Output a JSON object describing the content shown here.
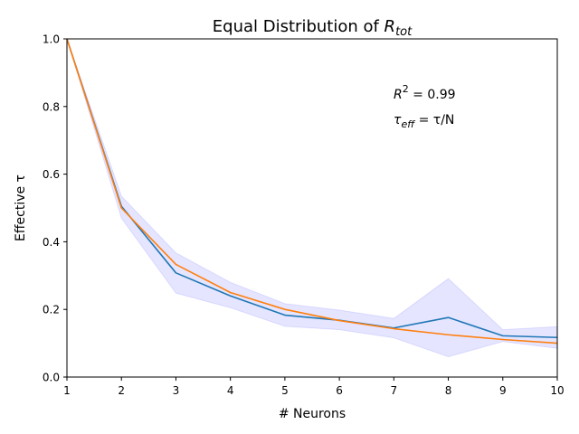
{
  "chart_data": {
    "type": "line",
    "title": {
      "main": "Equal Distribution of ",
      "var": "R",
      "sub": "tot"
    },
    "xlabel": "# Neurons",
    "ylabel": "Effective τ",
    "xlim": [
      1,
      10
    ],
    "ylim": [
      0,
      1
    ],
    "xticks": [
      1,
      2,
      3,
      4,
      5,
      6,
      7,
      8,
      9,
      10
    ],
    "yticks": [
      0.0,
      0.2,
      0.4,
      0.6,
      0.8,
      1.0
    ],
    "ytick_labels": [
      "0.0",
      "0.2",
      "0.4",
      "0.6",
      "0.8",
      "1.0"
    ],
    "grid": false,
    "x": [
      1,
      2,
      3,
      4,
      5,
      6,
      7,
      8,
      9,
      10
    ],
    "series": [
      {
        "color": "#1f77b4",
        "values": [
          1.0,
          0.505,
          0.308,
          0.24,
          0.183,
          0.168,
          0.145,
          0.176,
          0.122,
          0.117
        ]
      },
      {
        "color": "#ff7f0e",
        "values": [
          1.0,
          0.5,
          0.333,
          0.25,
          0.2,
          0.167,
          0.143,
          0.125,
          0.111,
          0.1
        ]
      }
    ],
    "band": {
      "color": "#0000ff",
      "opacity": 0.1,
      "lower": [
        1.0,
        0.47,
        0.248,
        0.205,
        0.15,
        0.14,
        0.116,
        0.06,
        0.105,
        0.085
      ],
      "upper": [
        1.0,
        0.535,
        0.367,
        0.28,
        0.217,
        0.198,
        0.173,
        0.291,
        0.14,
        0.149
      ]
    },
    "annotations": {
      "r2": {
        "var": "R",
        "sup": "2",
        "text": " = 0.99"
      },
      "tau": {
        "var": "τ",
        "sub": "eff",
        "text": " =  τ/N"
      }
    }
  }
}
